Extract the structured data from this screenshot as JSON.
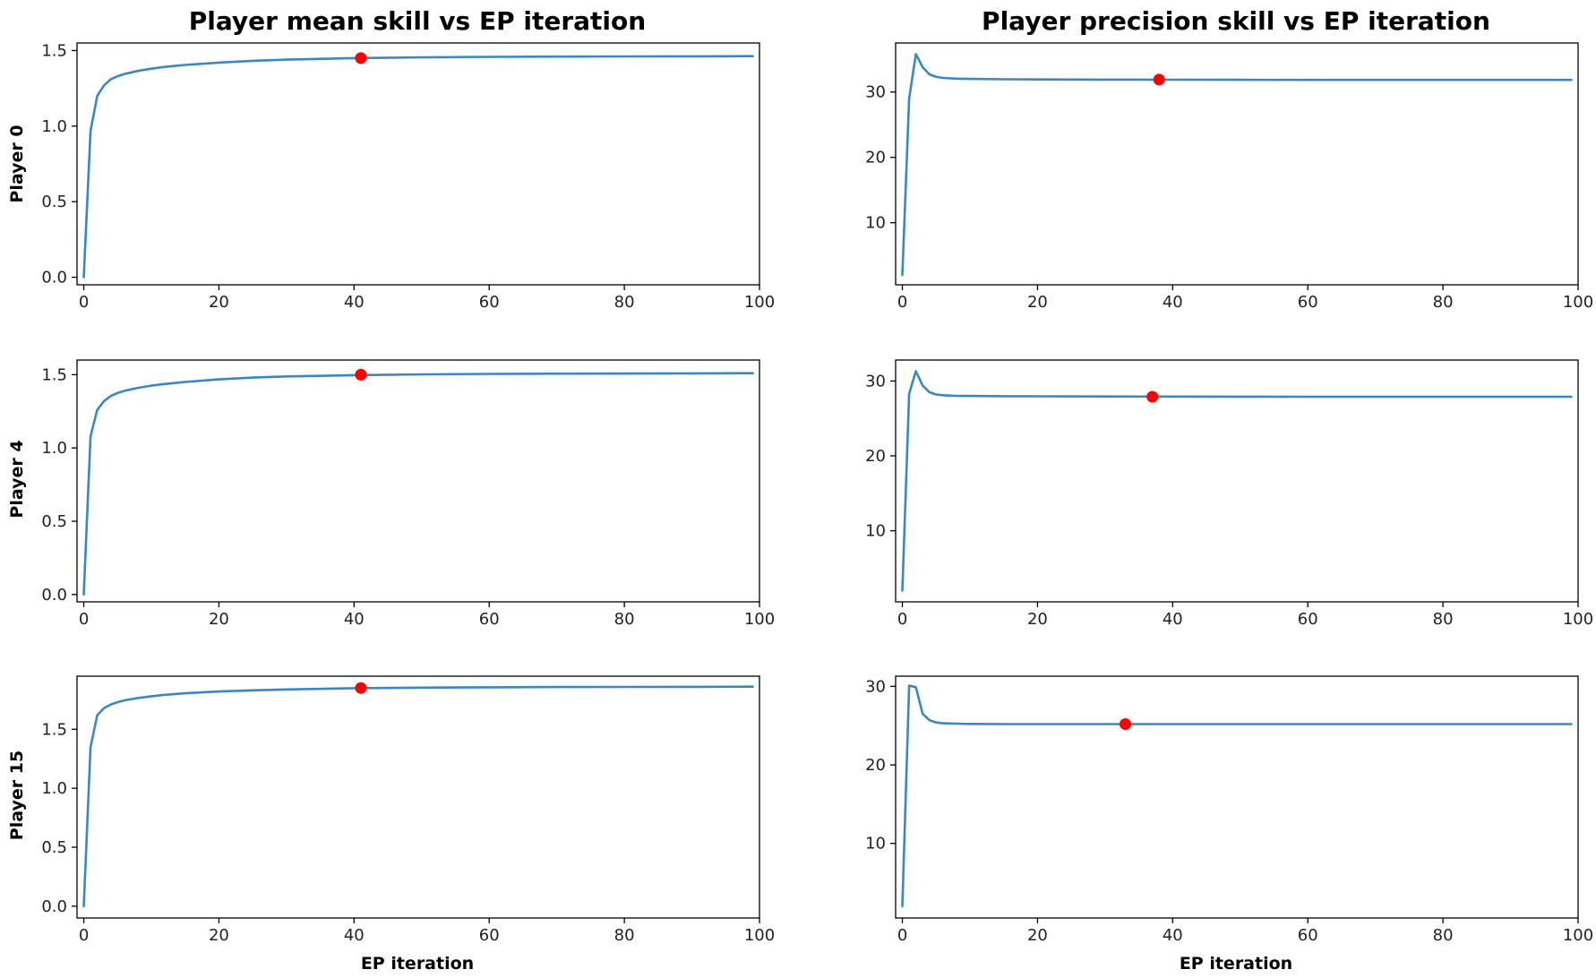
{
  "figure": {
    "col_titles": [
      "Player mean skill vs EP iteration",
      "Player precision skill vs EP iteration"
    ],
    "row_labels": [
      "Player 0",
      "Player 4",
      "Player 15"
    ],
    "xlabel": "EP iteration",
    "colors": {
      "line": "#3a87c4",
      "marker": "#ff0000",
      "axes": "#000000"
    }
  },
  "chart_data": [
    {
      "type": "line",
      "player": "Player 0",
      "quantity": "mean skill",
      "title": "Player mean skill vs EP iteration",
      "xlabel": "",
      "ylabel": "Player 0",
      "xlim": [
        -1,
        100
      ],
      "ylim": [
        -0.05,
        1.55
      ],
      "xticks": [
        0,
        20,
        40,
        60,
        80,
        100
      ],
      "yticks": [
        0.0,
        0.5,
        1.0,
        1.5
      ],
      "ytick_labels": [
        "0.0",
        "0.5",
        "1.0",
        "1.5"
      ],
      "x": [
        0,
        1,
        2,
        3,
        4,
        5,
        6,
        8,
        10,
        12,
        15,
        20,
        25,
        30,
        40,
        50,
        60,
        70,
        80,
        90,
        99
      ],
      "y": [
        0.0,
        0.97,
        1.2,
        1.27,
        1.31,
        1.33,
        1.345,
        1.365,
        1.38,
        1.392,
        1.405,
        1.42,
        1.432,
        1.44,
        1.45,
        1.455,
        1.458,
        1.46,
        1.461,
        1.462,
        1.463
      ],
      "highlight": {
        "x": 41,
        "y": 1.45
      },
      "grid": false
    },
    {
      "type": "line",
      "player": "Player 0",
      "quantity": "precision skill",
      "title": "Player precision skill vs EP iteration",
      "xlabel": "",
      "ylabel": "",
      "xlim": [
        -1,
        100
      ],
      "ylim": [
        0.5,
        37.5
      ],
      "xticks": [
        0,
        20,
        40,
        60,
        80,
        100
      ],
      "yticks": [
        10,
        20,
        30
      ],
      "ytick_labels": [
        "10",
        "20",
        "30"
      ],
      "x": [
        0,
        1,
        2,
        3,
        4,
        5,
        6,
        8,
        10,
        15,
        20,
        30,
        40,
        50,
        60,
        80,
        99
      ],
      "y": [
        2,
        29,
        35.8,
        33.8,
        32.7,
        32.3,
        32.15,
        32.05,
        32.0,
        31.95,
        31.92,
        31.9,
        31.88,
        31.87,
        31.86,
        31.85,
        31.85
      ],
      "highlight": {
        "x": 38,
        "y": 31.9
      },
      "grid": false
    },
    {
      "type": "line",
      "player": "Player 4",
      "quantity": "mean skill",
      "title": "",
      "xlabel": "",
      "ylabel": "Player 4",
      "xlim": [
        -1,
        100
      ],
      "ylim": [
        -0.05,
        1.6
      ],
      "xticks": [
        0,
        20,
        40,
        60,
        80,
        100
      ],
      "yticks": [
        0.0,
        0.5,
        1.0,
        1.5
      ],
      "ytick_labels": [
        "0.0",
        "0.5",
        "1.0",
        "1.5"
      ],
      "x": [
        0,
        1,
        2,
        3,
        4,
        5,
        6,
        8,
        10,
        12,
        15,
        20,
        25,
        30,
        40,
        50,
        60,
        70,
        80,
        90,
        99
      ],
      "y": [
        0.0,
        1.08,
        1.26,
        1.32,
        1.355,
        1.375,
        1.39,
        1.41,
        1.425,
        1.437,
        1.45,
        1.468,
        1.48,
        1.488,
        1.497,
        1.502,
        1.505,
        1.507,
        1.508,
        1.509,
        1.51
      ],
      "highlight": {
        "x": 41,
        "y": 1.5
      },
      "grid": false
    },
    {
      "type": "line",
      "player": "Player 4",
      "quantity": "precision skill",
      "title": "",
      "xlabel": "",
      "ylabel": "",
      "xlim": [
        -1,
        100
      ],
      "ylim": [
        0.5,
        32.8
      ],
      "xticks": [
        0,
        20,
        40,
        60,
        80,
        100
      ],
      "yticks": [
        10,
        20,
        30
      ],
      "ytick_labels": [
        "10",
        "20",
        "30"
      ],
      "x": [
        0,
        1,
        2,
        3,
        4,
        5,
        6,
        8,
        10,
        15,
        20,
        30,
        40,
        50,
        60,
        80,
        99
      ],
      "y": [
        2,
        28.3,
        31.3,
        29.4,
        28.5,
        28.2,
        28.1,
        28.02,
        28.0,
        27.97,
        27.95,
        27.93,
        27.92,
        27.91,
        27.9,
        27.9,
        27.9
      ],
      "highlight": {
        "x": 37,
        "y": 27.9
      },
      "grid": false
    },
    {
      "type": "line",
      "player": "Player 15",
      "quantity": "mean skill",
      "title": "",
      "xlabel": "EP iteration",
      "ylabel": "Player 15",
      "xlim": [
        -1,
        100
      ],
      "ylim": [
        -0.1,
        1.95
      ],
      "xticks": [
        0,
        20,
        40,
        60,
        80,
        100
      ],
      "yticks": [
        0.0,
        0.5,
        1.0,
        1.5
      ],
      "ytick_labels": [
        "0.0",
        "0.5",
        "1.0",
        "1.5"
      ],
      "x": [
        0,
        1,
        2,
        3,
        4,
        5,
        6,
        8,
        10,
        12,
        15,
        20,
        25,
        30,
        40,
        50,
        60,
        70,
        80,
        90,
        99
      ],
      "y": [
        0.0,
        1.35,
        1.62,
        1.68,
        1.71,
        1.73,
        1.745,
        1.765,
        1.78,
        1.792,
        1.805,
        1.82,
        1.83,
        1.838,
        1.848,
        1.853,
        1.856,
        1.858,
        1.859,
        1.86,
        1.861
      ],
      "highlight": {
        "x": 41,
        "y": 1.85
      },
      "grid": false
    },
    {
      "type": "line",
      "player": "Player 15",
      "quantity": "precision skill",
      "title": "",
      "xlabel": "EP iteration",
      "ylabel": "",
      "xlim": [
        -1,
        100
      ],
      "ylim": [
        0.5,
        31.3
      ],
      "xticks": [
        0,
        20,
        40,
        60,
        80,
        100
      ],
      "yticks": [
        10,
        20,
        30
      ],
      "ytick_labels": [
        "10",
        "20",
        "30"
      ],
      "x": [
        0,
        1,
        2,
        3,
        4,
        5,
        6,
        8,
        10,
        15,
        20,
        30,
        40,
        50,
        60,
        80,
        99
      ],
      "y": [
        2,
        30.1,
        29.9,
        26.5,
        25.7,
        25.4,
        25.3,
        25.25,
        25.22,
        25.2,
        25.2,
        25.2,
        25.2,
        25.2,
        25.2,
        25.2,
        25.2
      ],
      "highlight": {
        "x": 33,
        "y": 25.2
      },
      "grid": false
    }
  ]
}
